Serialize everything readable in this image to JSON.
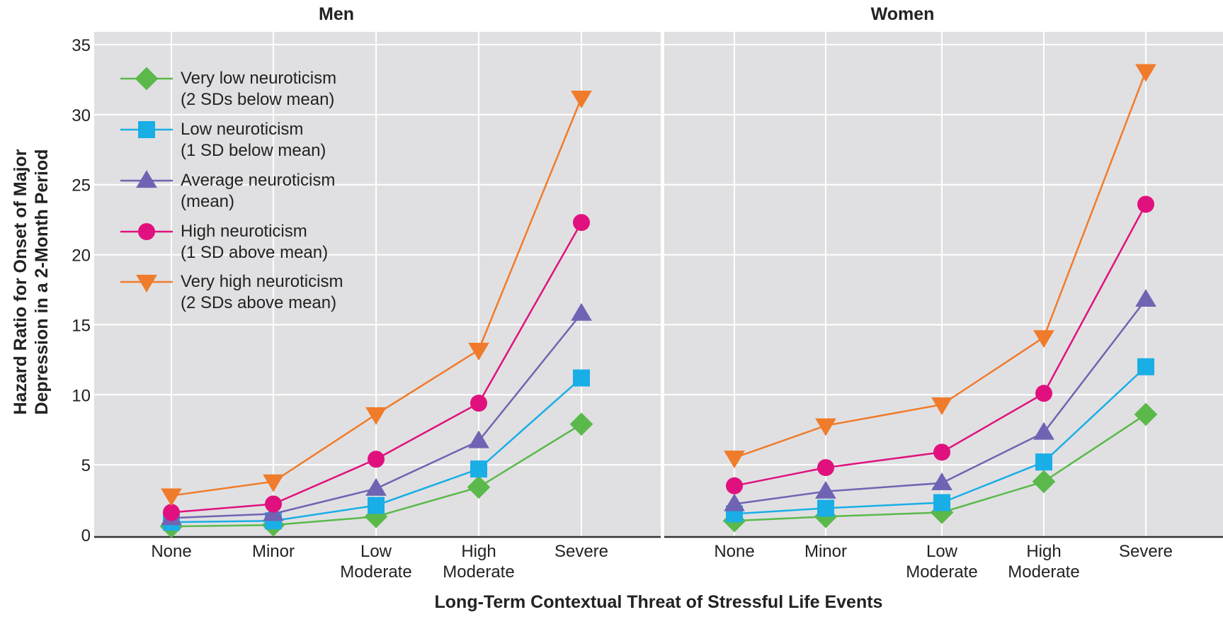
{
  "chart_data": {
    "type": "line",
    "ylabel": [
      "Hazard Ratio for Onset of Major",
      "Depression in a 2-Month Period"
    ],
    "xlabel": "Long-Term Contextual Threat of Stressful Life Events",
    "ylim": [
      0,
      35
    ],
    "y_ticks": [
      "0",
      "5",
      "10",
      "15",
      "20",
      "25",
      "30",
      "35"
    ],
    "grid": true,
    "legend_position": "top-left",
    "categories": [
      [
        "None"
      ],
      [
        "Minor"
      ],
      [
        "Low",
        "Moderate"
      ],
      [
        "High",
        "Moderate"
      ],
      [
        "Severe"
      ]
    ],
    "series_styles": [
      {
        "color": "#5ab94a",
        "marker": "diamond",
        "legend": [
          "Very low neuroticism",
          "(2 SDs below mean)"
        ]
      },
      {
        "color": "#1aaee6",
        "marker": "square",
        "legend": [
          "Low neuroticism",
          "(1 SD below mean)"
        ]
      },
      {
        "color": "#6f64b3",
        "marker": "triangle-up",
        "legend": [
          "Average neuroticism",
          "(mean)"
        ]
      },
      {
        "color": "#e0117e",
        "marker": "circle",
        "legend": [
          "High neuroticism",
          "(1 SD above mean)"
        ]
      },
      {
        "color": "#f07b2b",
        "marker": "triangle-down",
        "legend": [
          "Very high neuroticism",
          "(2 SDs above mean)"
        ]
      }
    ],
    "panels": [
      {
        "title": "Men",
        "series": [
          {
            "values": [
              0.6,
              0.7,
              1.3,
              3.4,
              7.9
            ]
          },
          {
            "values": [
              0.9,
              1.0,
              2.1,
              4.7,
              11.2
            ]
          },
          {
            "values": [
              1.2,
              1.5,
              3.3,
              6.7,
              15.8
            ]
          },
          {
            "values": [
              1.6,
              2.2,
              5.4,
              9.4,
              22.3
            ]
          },
          {
            "values": [
              2.8,
              3.8,
              8.6,
              13.2,
              31.2
            ]
          }
        ]
      },
      {
        "title": "Women",
        "series": [
          {
            "values": [
              1.0,
              1.3,
              1.6,
              3.8,
              8.6
            ]
          },
          {
            "values": [
              1.5,
              1.9,
              2.3,
              5.2,
              12.0
            ]
          },
          {
            "values": [
              2.2,
              3.1,
              3.7,
              7.3,
              16.8
            ]
          },
          {
            "values": [
              3.5,
              4.8,
              5.9,
              10.1,
              23.6
            ]
          },
          {
            "values": [
              5.5,
              7.8,
              9.3,
              14.1,
              33.1
            ]
          }
        ]
      }
    ]
  }
}
